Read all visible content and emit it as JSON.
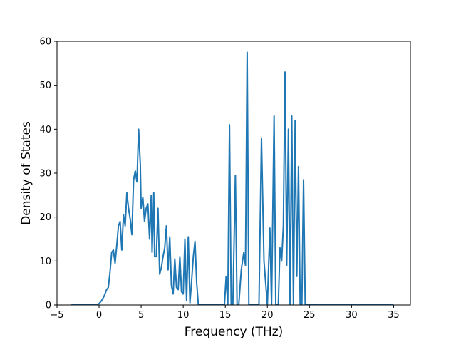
{
  "chart_data": {
    "type": "line",
    "title": "",
    "xlabel": "Frequency (THz)",
    "ylabel": "Density of States",
    "xlim": [
      -5,
      37
    ],
    "ylim": [
      0,
      60
    ],
    "xticks": [
      -5,
      0,
      5,
      10,
      15,
      20,
      25,
      30,
      35
    ],
    "yticks": [
      0,
      10,
      20,
      30,
      40,
      50,
      60
    ],
    "grid": false,
    "legend": "none",
    "line_color": "#1f77b4",
    "series": [
      {
        "x": [
          -3.3,
          -0.5,
          0.0,
          0.3,
          0.6,
          0.9,
          1.1,
          1.3,
          1.5,
          1.7,
          1.9,
          2.1,
          2.3,
          2.5,
          2.7,
          2.9,
          3.1,
          3.3,
          3.5,
          3.7,
          3.9,
          4.1,
          4.3,
          4.5,
          4.7,
          4.9,
          5.0,
          5.2,
          5.4,
          5.6,
          5.8,
          6.0,
          6.2,
          6.3,
          6.5,
          6.6,
          6.8,
          7.0,
          7.2,
          7.4,
          7.6,
          7.8,
          8.0,
          8.2,
          8.4,
          8.6,
          8.8,
          9.0,
          9.2,
          9.4,
          9.6,
          9.8,
          10.0,
          10.2,
          10.4,
          10.6,
          10.8,
          11.0,
          11.2,
          11.4,
          11.6,
          11.8,
          12.0,
          12.2,
          14.9,
          15.1,
          15.3,
          15.5,
          15.7,
          15.9,
          16.2,
          16.4,
          16.6,
          16.9,
          17.2,
          17.4,
          17.6,
          17.8,
          18.0,
          18.5,
          19.0,
          19.3,
          19.6,
          20.0,
          20.3,
          20.5,
          20.8,
          21.0,
          21.3,
          21.5,
          21.7,
          21.9,
          22.1,
          22.3,
          22.5,
          22.7,
          22.9,
          23.1,
          23.3,
          23.5,
          23.7,
          23.9,
          24.1,
          24.3,
          24.5,
          24.7,
          24.9,
          25.1,
          35.0
        ],
        "y": [
          0,
          0,
          0.3,
          1.0,
          2.0,
          3.5,
          4.0,
          7.5,
          12.0,
          12.5,
          9.5,
          13.5,
          18.0,
          19.0,
          12.5,
          20.5,
          18.0,
          25.5,
          22.0,
          19.5,
          16.0,
          28.5,
          30.5,
          28.0,
          40.0,
          32.0,
          22.0,
          24.5,
          19.0,
          22.0,
          23.0,
          15.0,
          25.0,
          12.0,
          25.5,
          11.0,
          11.0,
          22.0,
          7.0,
          8.5,
          11.0,
          13.0,
          18.0,
          8.0,
          15.5,
          4.5,
          2.5,
          10.5,
          4.0,
          3.5,
          11.0,
          3.0,
          2.5,
          15.0,
          1.0,
          15.5,
          0.5,
          5.5,
          11.0,
          14.5,
          5.0,
          0,
          0,
          0,
          0,
          6.5,
          0,
          41.0,
          0,
          0,
          29.5,
          0,
          0,
          8.0,
          12.0,
          9.0,
          57.5,
          0,
          0,
          0,
          0,
          38.0,
          10.0,
          0,
          17.5,
          0,
          43.0,
          0,
          0,
          13.0,
          10.0,
          18.0,
          53.0,
          9.0,
          40.0,
          0,
          43.0,
          0,
          42.0,
          6.5,
          31.5,
          0,
          0,
          28.5,
          0,
          0,
          0,
          0,
          0
        ]
      }
    ]
  }
}
